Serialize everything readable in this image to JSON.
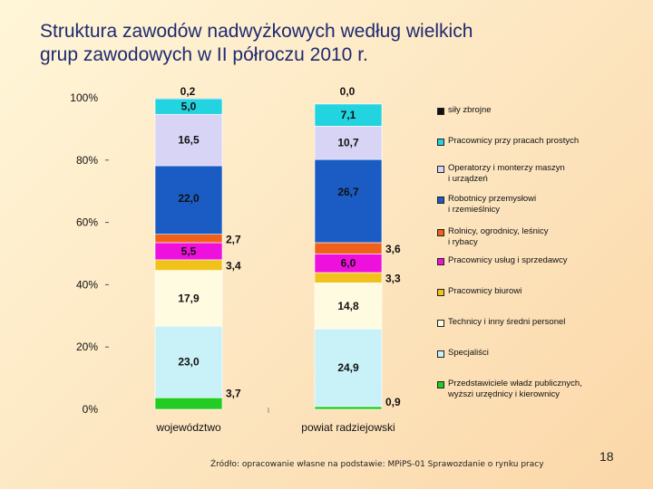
{
  "title": {
    "line1": "Struktura zawodów nadwyżkowych według wielkich",
    "line2": "grup zawodowych w II półroczu 2010 r."
  },
  "footer": "Źródło: opracowanie własne na podstawie: MPiPS-01 Sprawozdanie o rynku pracy",
  "page_number": "18",
  "chart_data": {
    "type": "bar",
    "stacked": true,
    "percent": true,
    "categories": [
      "województwo",
      "powiat radziejowski"
    ],
    "ytick_labels": [
      "0%",
      "20%",
      "40%",
      "60%",
      "80%",
      "100%"
    ],
    "ylim": [
      0,
      100
    ],
    "legend_position": "right",
    "series": [
      {
        "name": "Przedstawiciele władz publicznych, wyższi urzędnicy i kierownicy",
        "color": "#22cc22",
        "values": [
          3.7,
          0.9
        ],
        "labels": [
          "3,7",
          "0,9"
        ]
      },
      {
        "name": "Specjaliści",
        "color": "#c8f2f8",
        "values": [
          23.0,
          24.9
        ],
        "labels": [
          "23,0",
          "24,9"
        ]
      },
      {
        "name": "Technicy i inny średni personel",
        "color": "#fffbe0",
        "values": [
          17.9,
          14.8
        ],
        "labels": [
          "17,9",
          "14,8"
        ]
      },
      {
        "name": "Pracownicy biurowi",
        "color": "#f1c21b",
        "values": [
          3.4,
          3.3
        ],
        "labels": [
          "3,4",
          "3,3"
        ]
      },
      {
        "name": "Pracownicy usług i sprzedawcy",
        "color": "#ee11dd",
        "values": [
          5.5,
          6.0
        ],
        "labels": [
          "5,5",
          "6,0"
        ]
      },
      {
        "name": "Rolnicy, ogrodnicy, leśnicy i rybacy",
        "color": "#f06018",
        "values": [
          2.7,
          3.6
        ],
        "labels": [
          "2,7",
          "3,6"
        ]
      },
      {
        "name": "Robotnicy przemysłowi i rzemieślnicy",
        "color": "#1a5cc4",
        "values": [
          22.0,
          26.7
        ],
        "labels": [
          "22,0",
          "26,7"
        ]
      },
      {
        "name": "Operatorzy i monterzy maszyn i urządzeń",
        "color": "#d8d4f6",
        "values": [
          16.5,
          10.7
        ],
        "labels": [
          "16,5",
          "10,7"
        ]
      },
      {
        "name": "Pracownicy przy pracach prostych",
        "color": "#22d4e0",
        "values": [
          5.0,
          7.1
        ],
        "labels": [
          "5,0",
          "7,1"
        ]
      },
      {
        "name": "siły zbrojne",
        "color": "#111111",
        "values": [
          0.2,
          0.0
        ],
        "labels": [
          "0,2",
          "0,0"
        ]
      }
    ],
    "legend_order": [
      {
        "name": "siły zbrojne",
        "lines": [
          "siły zbrojne"
        ],
        "color": "#111111"
      },
      {
        "name": "Pracownicy przy pracach prostych",
        "lines": [
          "Pracownicy przy pracach prostych"
        ],
        "color": "#22d4e0"
      },
      {
        "name": "Operatorzy i monterzy maszyn i urządzeń",
        "lines": [
          "Operatorzy i monterzy maszyn",
          "i urządzeń"
        ],
        "color": "#d8d4f6"
      },
      {
        "name": "Robotnicy przemysłowi i rzemieślnicy",
        "lines": [
          "Robotnicy przemysłowi",
          "i rzemieślnicy"
        ],
        "color": "#1a5cc4"
      },
      {
        "name": "Rolnicy, ogrodnicy, leśnicy i rybacy",
        "lines": [
          "Rolnicy, ogrodnicy, leśnicy",
          "i rybacy"
        ],
        "color": "#f06018"
      },
      {
        "name": "Pracownicy usług i sprzedawcy",
        "lines": [
          "Pracownicy usług i sprzedawcy"
        ],
        "color": "#ee11dd"
      },
      {
        "name": "Pracownicy biurowi",
        "lines": [
          "Pracownicy biurowi"
        ],
        "color": "#f1c21b"
      },
      {
        "name": "Technicy i inny średni personel",
        "lines": [
          "Technicy i inny średni personel"
        ],
        "color": "#fffbe0"
      },
      {
        "name": "Specjaliści",
        "lines": [
          "Specjaliści"
        ],
        "color": "#c8f2f8"
      },
      {
        "name": "Przedstawiciele władz publicznych, wyższi urzędnicy i kierownicy",
        "lines": [
          "Przedstawiciele władz publicznych,",
          "wyższi urzędnicy i kierownicy"
        ],
        "color": "#22cc22"
      }
    ]
  }
}
